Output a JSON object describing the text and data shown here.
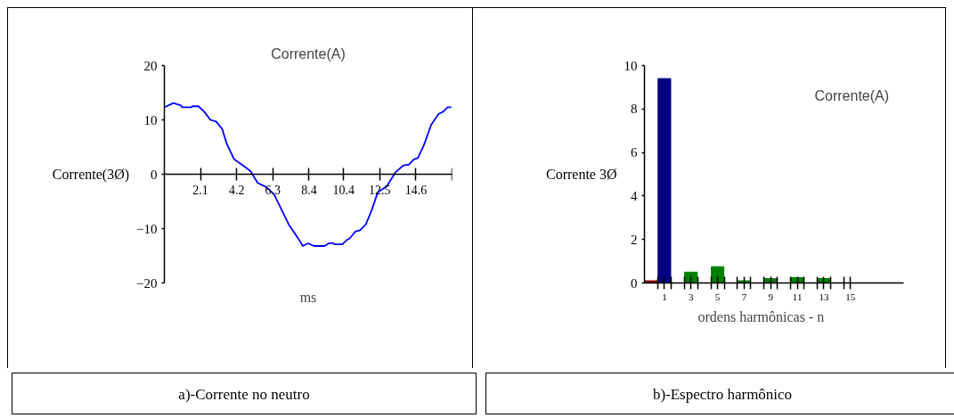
{
  "chart_data": [
    {
      "type": "line",
      "title": "Corrente(A)",
      "xlabel": "ms",
      "ylabel": "Corrente(3Ø)",
      "x": [
        0,
        0.52,
        0.95,
        1.03,
        1.55,
        1.63,
        1.98,
        2.32,
        2.67,
        3.01,
        3.36,
        3.61,
        4.04,
        4.48,
        4.99,
        5.42,
        5.94,
        6.37,
        6.8,
        7.23,
        7.75,
        8.04,
        8.35,
        8.69,
        9.29,
        9.55,
        9.81,
        9.9,
        10.33,
        10.59,
        10.76,
        11.1,
        11.36,
        11.7,
        12.05,
        12.39,
        12.91,
        13.43,
        13.86,
        14.2,
        14.46,
        14.72,
        15.06,
        15.49,
        15.92,
        16.18,
        16.44,
        16.66
      ],
      "values": [
        12.3,
        13.1,
        12.7,
        12.3,
        12.3,
        12.5,
        12.5,
        11.5,
        10.0,
        9.7,
        8.3,
        5.7,
        2.8,
        1.8,
        0.6,
        -1.6,
        -2.4,
        -3.7,
        -6.5,
        -9.3,
        -11.7,
        -13.2,
        -12.7,
        -13.2,
        -13.2,
        -12.7,
        -12.7,
        -12.9,
        -12.9,
        -12.1,
        -11.8,
        -10.5,
        -10.3,
        -9.2,
        -6.5,
        -3.3,
        -2.2,
        0.4,
        1.6,
        1.8,
        2.7,
        3.0,
        5.3,
        9.1,
        11.1,
        11.5,
        12.3,
        12.3
      ],
      "color": "#0000ff",
      "xlim": [
        0,
        16.7
      ],
      "ylim": [
        -20,
        20
      ],
      "xticks": [
        2.1,
        4.2,
        6.3,
        8.4,
        10.4,
        12.5,
        14.6,
        {
          "value": 16.7,
          "label": null
        }
      ],
      "yticks": [
        -20,
        -10,
        0,
        10,
        20
      ],
      "grid": false,
      "annotations": [
        "a)-Corrente no neutro"
      ]
    },
    {
      "type": "bar",
      "title": "Corrente(A)",
      "xlabel": "ordens harmônicas - n",
      "ylabel": "Corrente 3Ø",
      "x": [
        0,
        1,
        3,
        5,
        7,
        9,
        11,
        13
      ],
      "values": [
        0.1,
        9.4,
        0.5,
        0.75,
        0.1,
        0.2,
        0.25,
        0.2
      ],
      "colors": [
        "#8b0000",
        "#000080",
        "#008000",
        "#008000",
        "#008000",
        "#008000",
        "#008000",
        "#008000"
      ],
      "xlim": [
        -0.5,
        19
      ],
      "ylim": [
        0,
        10
      ],
      "xticks": [
        {
          "value": 0.5,
          "label": null
        },
        1,
        {
          "value": 1.5,
          "label": null
        },
        {
          "value": 2.5,
          "label": null
        },
        3,
        {
          "value": 3.5,
          "label": null
        },
        {
          "value": 4.5,
          "label": null
        },
        5,
        {
          "value": 5.5,
          "label": null
        },
        {
          "value": 6.5,
          "label": null
        },
        7,
        {
          "value": 7.5,
          "label": null
        },
        {
          "value": 8.5,
          "label": null
        },
        9,
        {
          "value": 9.5,
          "label": null
        },
        {
          "value": 10.5,
          "label": null
        },
        11,
        {
          "value": 11.5,
          "label": null
        },
        {
          "value": 12.5,
          "label": null
        },
        13,
        {
          "value": 13.5,
          "label": null
        },
        {
          "value": 14.5,
          "label": null
        },
        15
      ],
      "yticks": [
        0,
        2,
        4,
        6,
        8,
        10
      ],
      "grid": false,
      "annotations": [
        "b)-Espectro harmônico"
      ]
    }
  ]
}
